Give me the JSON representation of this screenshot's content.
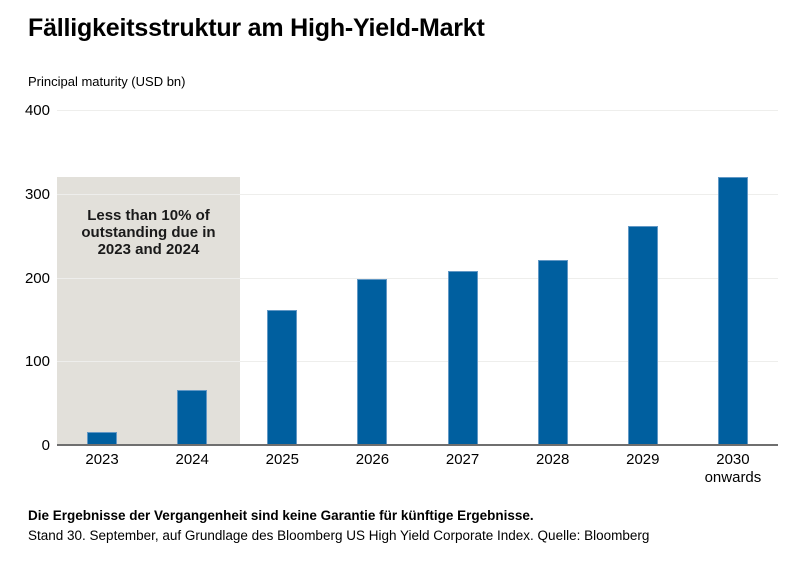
{
  "header": {
    "title": "Fälligkeitsstruktur am High-Yield-Markt"
  },
  "chart_data": {
    "type": "bar",
    "title": "Fälligkeitsstruktur am High-Yield-Markt",
    "ylabel": "Principal maturity (USD bn)",
    "xlabel": "",
    "categories_lines": [
      [
        "2023"
      ],
      [
        "2024"
      ],
      [
        "2025"
      ],
      [
        "2026"
      ],
      [
        "2027"
      ],
      [
        "2028"
      ],
      [
        "2029"
      ],
      [
        "2030",
        "onwards"
      ]
    ],
    "values": [
      16,
      66,
      161,
      198,
      208,
      221,
      262,
      320
    ],
    "ylim": [
      0,
      400
    ],
    "yticks": [
      0,
      100,
      200,
      300,
      400
    ],
    "grid": true,
    "legend": "none",
    "colors": {
      "bar_fill": "#005f9f",
      "bar_border": "#6298c5",
      "gridline": "#eeeeec",
      "axis": "#6f6f6f",
      "annotation_box": "#e2e0da"
    },
    "annotation": {
      "text_lines": [
        "Less than 10% of",
        "outstanding due in",
        "2023 and 2024"
      ],
      "covers_categories": [
        "2023",
        "2024"
      ],
      "y_top_value": 320
    }
  },
  "footer": {
    "disclaimer": "Die Ergebnisse der Vergangenheit sind keine Garantie für künftige Ergebnisse.",
    "source": "Stand 30. September, auf Grundlage des Bloomberg US High Yield Corporate Index. Quelle: Bloomberg"
  }
}
